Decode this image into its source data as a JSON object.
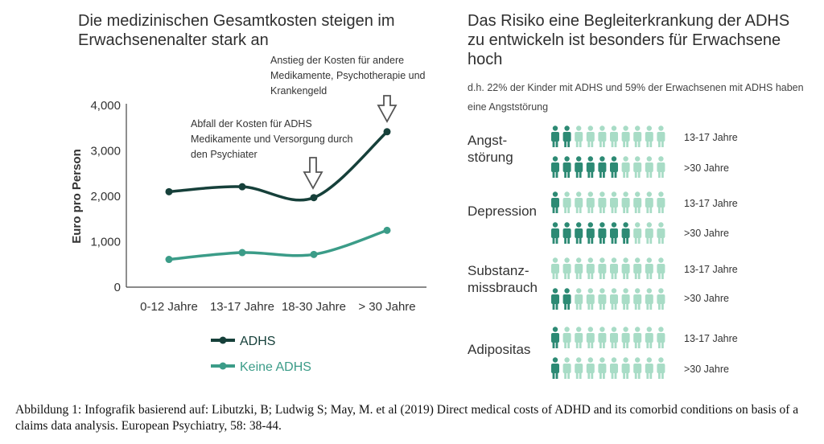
{
  "left_panel": {
    "title": "Die medizinischen Gesamtkosten steigen im Erwachsenenalter stark an",
    "annotation_rise": "Anstieg der Kosten für andere Medikamente, Psychotherapie und Krankengeld",
    "annotation_drop": "Abfall der Kosten für ADHS Medikamente und Versorgung durch den Psychiater"
  },
  "right_panel": {
    "title": "Das Risiko eine Begleiterkrankung der ADHS zu entwickeln ist besonders für Erwachsene hoch",
    "subtitle": "d.h. 22% der Kinder mit ADHS und 59% der Erwachsenen mit ADHS haben eine Angststörung",
    "rows": [
      {
        "label": "Angst-\nstörung",
        "groups": [
          {
            "age": "13-17 Jahre",
            "highlighted": 2,
            "total": 10
          },
          {
            "age": ">30 Jahre",
            "highlighted": 6,
            "total": 10
          }
        ]
      },
      {
        "label": "Depression",
        "groups": [
          {
            "age": "13-17 Jahre",
            "highlighted": 1,
            "total": 10
          },
          {
            "age": ">30 Jahre",
            "highlighted": 7,
            "total": 10
          }
        ]
      },
      {
        "label": "Substanz-\nmissbrauch",
        "groups": [
          {
            "age": "13-17 Jahre",
            "highlighted": 0,
            "total": 10
          },
          {
            "age": ">30 Jahre",
            "highlighted": 2,
            "total": 10
          }
        ]
      },
      {
        "label": "Adipositas",
        "groups": [
          {
            "age": "13-17 Jahre",
            "highlighted": 1,
            "total": 10
          },
          {
            "age": ">30 Jahre",
            "highlighted": 1,
            "total": 10
          }
        ]
      }
    ],
    "colors": {
      "highlight": "#2d8a74",
      "base": "#a8dcc6"
    }
  },
  "caption": "Abbildung 1: Infografik basierend auf: Libutzki, B; Ludwig S; May, M. et al (2019) Direct medical costs of ADHD and its comorbid conditions on basis of a claims data analysis. European Psychiatry, 58: 38-44.",
  "chart_data": {
    "type": "line",
    "title": "Die medizinischen Gesamtkosten steigen im Erwachsenenalter stark an",
    "xlabel": "",
    "ylabel": "Euro pro Person",
    "categories": [
      "0-12 Jahre",
      "13-17 Jahre",
      "18-30 Jahre",
      "> 30 Jahre"
    ],
    "ylim": [
      0,
      4000
    ],
    "yticks": [
      0,
      1000,
      2000,
      3000,
      4000
    ],
    "ytick_labels": [
      "0",
      "1,000",
      "2,000",
      "3,000",
      "4,000"
    ],
    "series": [
      {
        "name": "ADHS",
        "values": [
          2100,
          2210,
          1970,
          3420
        ],
        "color": "#16403a"
      },
      {
        "name": "Keine ADHS",
        "values": [
          610,
          760,
          720,
          1250
        ],
        "color": "#3b9c88"
      }
    ],
    "grid": false,
    "legend": "bottom"
  }
}
